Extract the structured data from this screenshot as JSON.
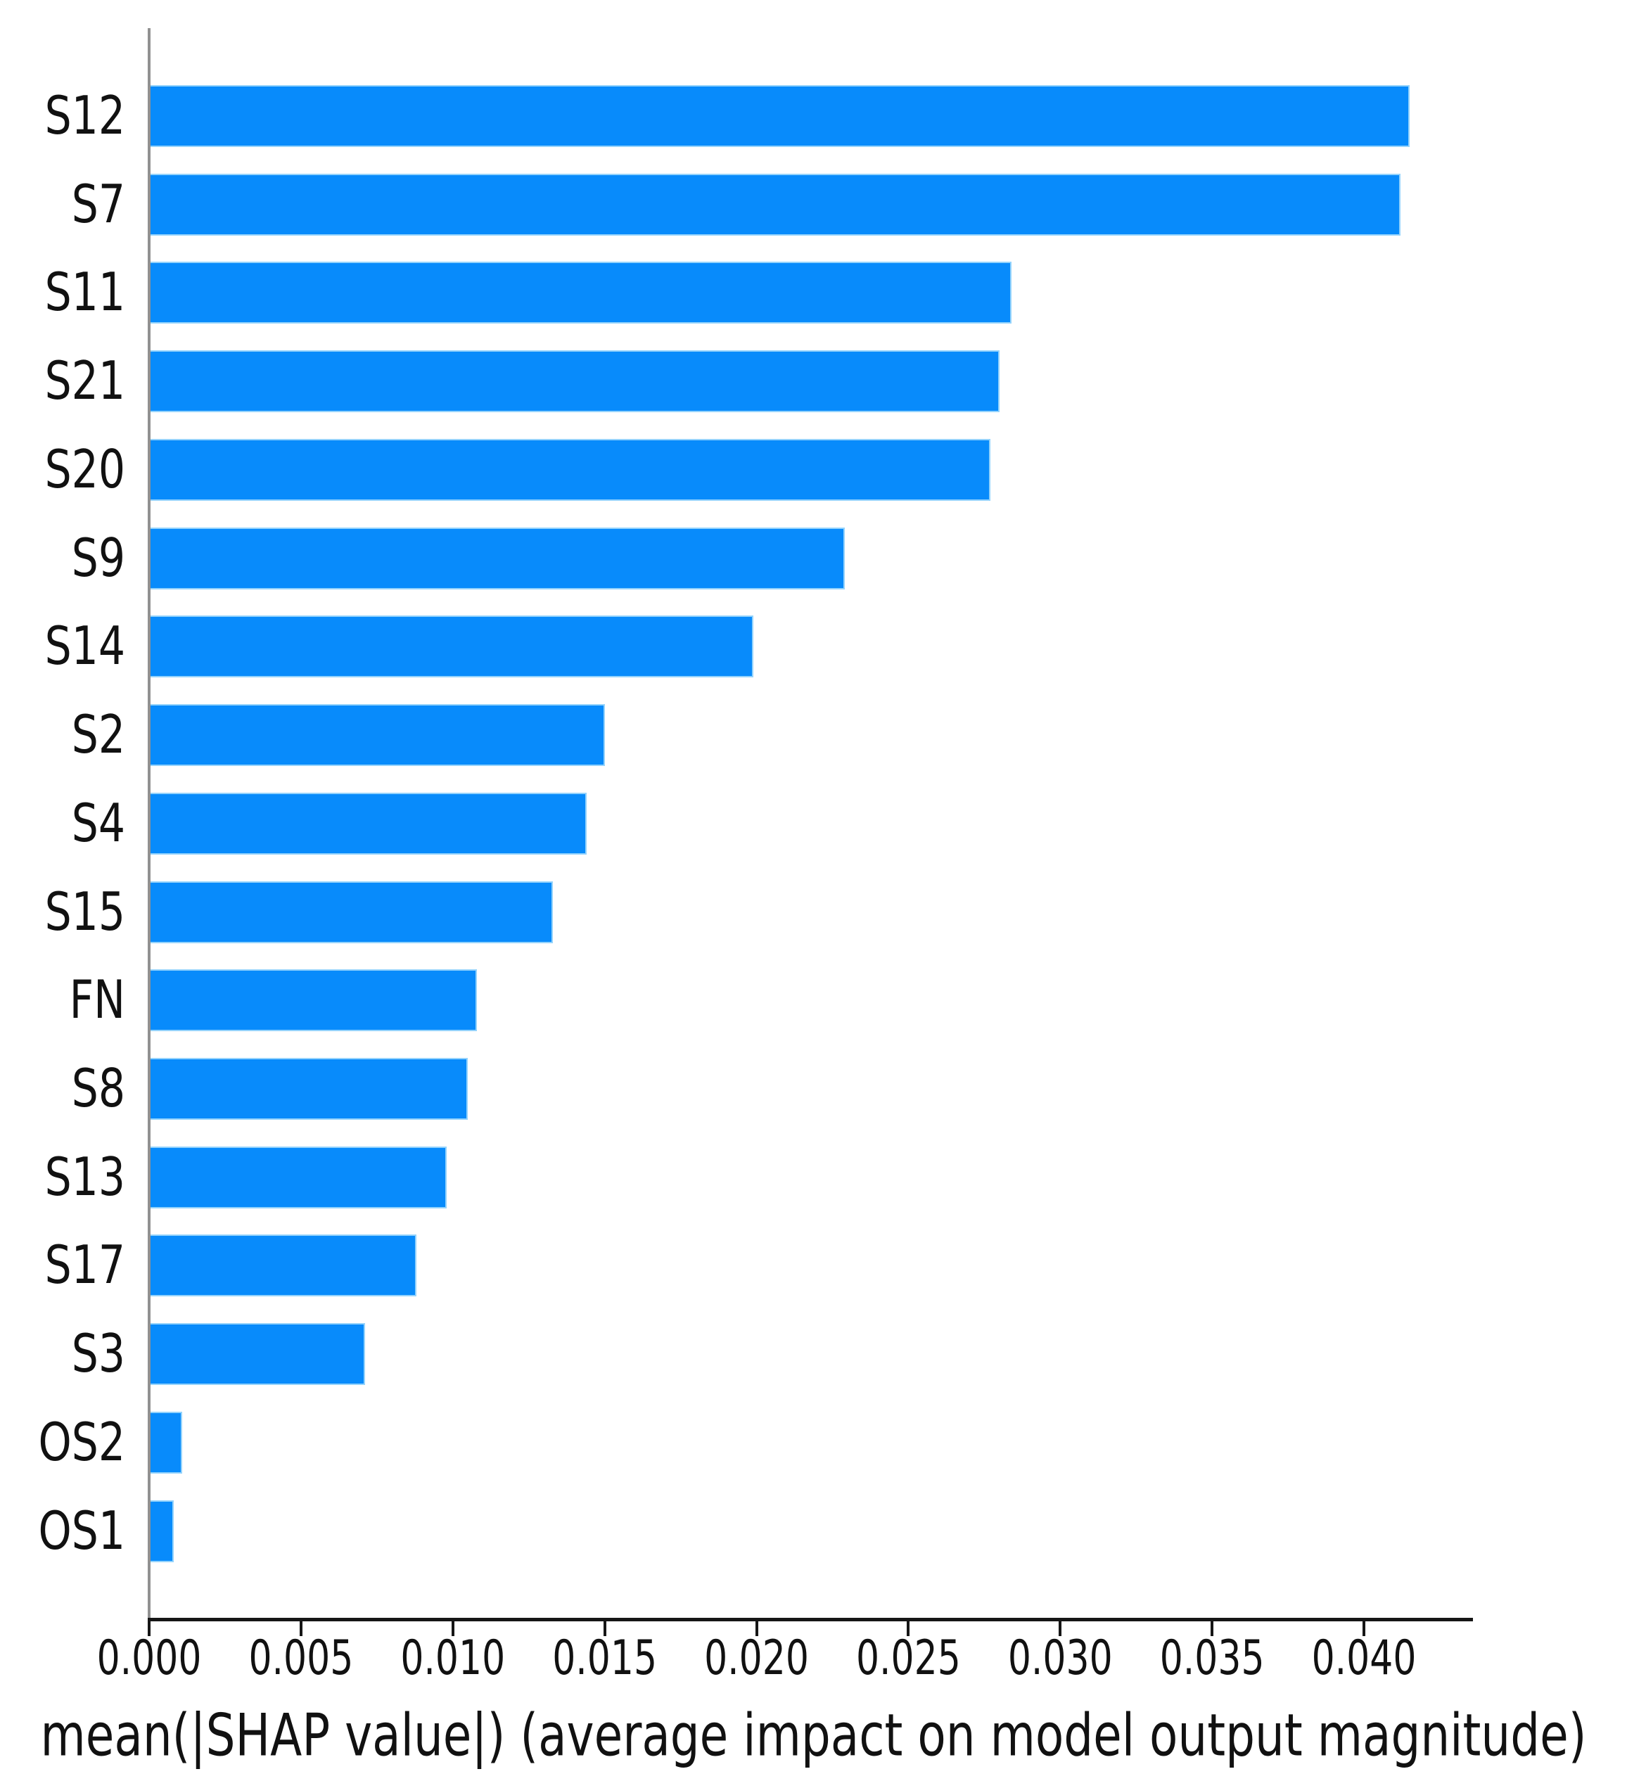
{
  "figure": {
    "background": "#ffffff"
  },
  "chart_data": {
    "type": "bar",
    "orientation": "horizontal",
    "title": "",
    "xlabel": "mean(|SHAP value|) (average impact on model output magnitude)",
    "ylabel": "",
    "categories": [
      "S12",
      "S7",
      "S11",
      "S21",
      "S20",
      "S9",
      "S14",
      "S2",
      "S4",
      "S15",
      "FN",
      "S8",
      "S13",
      "S17",
      "S3",
      "OS2",
      "OS1"
    ],
    "values": [
      0.0415,
      0.0412,
      0.0284,
      0.028,
      0.0277,
      0.0229,
      0.0199,
      0.015,
      0.0144,
      0.0133,
      0.0108,
      0.0105,
      0.0098,
      0.0088,
      0.0071,
      0.0011,
      0.0008
    ],
    "xlim": [
      0,
      0.0436
    ],
    "xtick_values": [
      0.0,
      0.005,
      0.01,
      0.015,
      0.02,
      0.025,
      0.03,
      0.035,
      0.04
    ],
    "xtick_labels": [
      "0.000",
      "0.005",
      "0.010",
      "0.015",
      "0.020",
      "0.025",
      "0.030",
      "0.035",
      "0.040"
    ],
    "grid": false,
    "legend": null,
    "bar_color": "#088bfb",
    "bar_edge_color": "#94d3fc",
    "y_axis_color": "#919191",
    "x_axis_color": "#161616",
    "tick_color": "#161616",
    "text_color": "#111111"
  }
}
